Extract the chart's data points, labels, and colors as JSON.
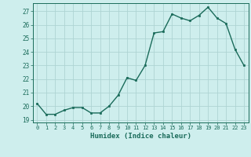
{
  "x": [
    0,
    1,
    2,
    3,
    4,
    5,
    6,
    7,
    8,
    9,
    10,
    11,
    12,
    13,
    14,
    15,
    16,
    17,
    18,
    19,
    20,
    21,
    22,
    23
  ],
  "y": [
    20.2,
    19.4,
    19.4,
    19.7,
    19.9,
    19.9,
    19.5,
    19.5,
    20.0,
    20.8,
    22.1,
    21.9,
    23.0,
    25.4,
    25.5,
    26.8,
    26.5,
    26.3,
    26.7,
    27.3,
    26.5,
    26.1,
    24.2,
    23.0
  ],
  "xlabel": "Humidex (Indice chaleur)",
  "xlim": [
    -0.5,
    23.5
  ],
  "ylim": [
    18.8,
    27.6
  ],
  "yticks": [
    19,
    20,
    21,
    22,
    23,
    24,
    25,
    26,
    27
  ],
  "xticks": [
    0,
    1,
    2,
    3,
    4,
    5,
    6,
    7,
    8,
    9,
    10,
    11,
    12,
    13,
    14,
    15,
    16,
    17,
    18,
    19,
    20,
    21,
    22,
    23
  ],
  "line_color": "#1a6b5a",
  "marker_color": "#1a6b5a",
  "bg_color": "#ceeeed",
  "grid_color": "#aed4d3",
  "axis_color": "#1a6b5a",
  "tick_label_color": "#1a6b5a",
  "xlabel_color": "#1a6b5a"
}
